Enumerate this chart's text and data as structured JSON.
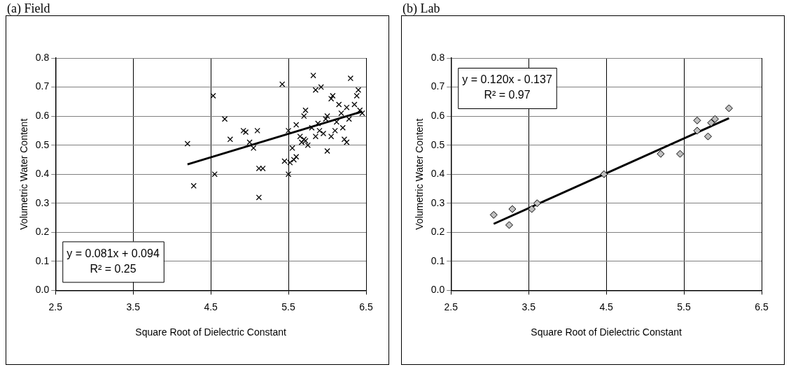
{
  "chart_data": [
    {
      "type": "scatter",
      "title": "(a) Field",
      "xlabel": "Square Root of Dielectric Constant",
      "ylabel": "Volumetric Water Content",
      "xlim": [
        2.5,
        6.5
      ],
      "xticks": [
        2.5,
        3.5,
        4.5,
        5.5,
        6.5
      ],
      "ylim": [
        0,
        0.8
      ],
      "yticks": [
        {
          "value": 0,
          "label": "0.0"
        },
        0.1,
        0.2,
        0.3,
        0.4,
        0.5,
        0.6,
        0.7,
        0.8
      ],
      "grid": true,
      "legend": false,
      "annotations": [
        "y = 0.081x + 0.094",
        "R² = 0.25"
      ],
      "series": [
        {
          "type": "scatter",
          "color": "#000000",
          "marker": "cross",
          "x": [
            4.2,
            4.28,
            4.53,
            4.55,
            4.68,
            4.75,
            4.92,
            4.95,
            5.0,
            5.05,
            5.1,
            5.12,
            5.12,
            5.17,
            5.42,
            5.45,
            5.5,
            5.5,
            5.52,
            5.55,
            5.57,
            5.6,
            5.6,
            5.65,
            5.67,
            5.7,
            5.72,
            5.7,
            5.72,
            5.75,
            5.8,
            5.82,
            5.85,
            5.88,
            5.9,
            5.92,
            5.95,
            5.98,
            6.0,
            6.0,
            6.05,
            6.07,
            6.1,
            6.12,
            6.15,
            6.18,
            6.2,
            6.22,
            6.25,
            6.28,
            6.3,
            6.32,
            6.35,
            6.38,
            6.4,
            6.42,
            6.45,
            6.25,
            6.05,
            5.85
          ],
          "values": [
            0.505,
            0.36,
            0.67,
            0.4,
            0.59,
            0.52,
            0.55,
            0.545,
            0.51,
            0.49,
            0.55,
            0.32,
            0.42,
            0.42,
            0.71,
            0.445,
            0.55,
            0.4,
            0.44,
            0.49,
            0.45,
            0.46,
            0.57,
            0.53,
            0.51,
            0.52,
            0.515,
            0.6,
            0.62,
            0.5,
            0.56,
            0.74,
            0.69,
            0.575,
            0.55,
            0.7,
            0.54,
            0.59,
            0.48,
            0.6,
            0.66,
            0.67,
            0.55,
            0.58,
            0.64,
            0.61,
            0.56,
            0.52,
            0.63,
            0.59,
            0.73,
            null,
            0.64,
            0.67,
            0.69,
            0.62,
            0.61,
            0.51,
            0.53,
            0.53
          ]
        },
        {
          "type": "line",
          "color": "#000000",
          "marker": "none",
          "x": [
            4.2,
            6.45
          ],
          "values": [
            0.434,
            0.616
          ]
        }
      ]
    },
    {
      "type": "scatter",
      "title": "(b) Lab",
      "xlabel": "Square Root of Dielectric Constant",
      "ylabel": "Volumetric Water Content",
      "xlim": [
        2.5,
        6.5
      ],
      "xticks": [
        2.5,
        3.5,
        4.5,
        5.5,
        6.5
      ],
      "ylim": [
        0,
        0.8
      ],
      "yticks": [
        {
          "value": 0,
          "label": "0.0"
        },
        0.1,
        0.2,
        0.3,
        0.4,
        0.5,
        0.6,
        0.7,
        0.8
      ],
      "grid": true,
      "legend": false,
      "annotations": [
        "y = 0.120x - 0.137",
        "R² = 0.97"
      ],
      "series": [
        {
          "type": "scatter",
          "color": "#c0c0c0",
          "marker": "diamond",
          "x": [
            3.05,
            3.25,
            3.29,
            3.54,
            3.61,
            4.47,
            5.2,
            5.45,
            5.67,
            5.67,
            5.81,
            5.85,
            5.9,
            6.08
          ],
          "values": [
            0.26,
            0.225,
            0.28,
            0.28,
            0.3,
            0.4,
            0.47,
            0.47,
            0.585,
            0.55,
            0.53,
            0.577,
            0.59,
            0.627
          ]
        },
        {
          "type": "line",
          "color": "#000000",
          "marker": "none",
          "x": [
            3.05,
            6.08
          ],
          "values": [
            0.229,
            0.593
          ]
        }
      ]
    }
  ]
}
